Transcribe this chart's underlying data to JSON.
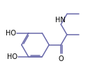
{
  "bg_color": "#ffffff",
  "bond_color": "#6868aa",
  "label_color": "#000000",
  "bond_lw": 1.1,
  "label_fontsize": 7.0,
  "figsize": [
    1.26,
    1.11
  ],
  "dpi": 100,
  "xlim": [
    0.0,
    9.5
  ],
  "ylim": [
    0.5,
    8.5
  ]
}
